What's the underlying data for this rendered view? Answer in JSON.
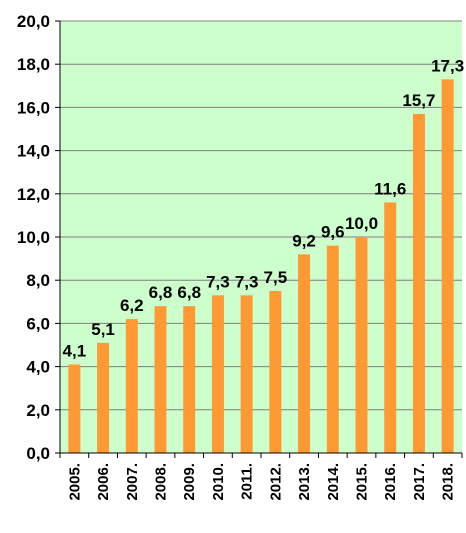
{
  "chart_data": {
    "type": "bar",
    "categories": [
      "2005.",
      "2006.",
      "2007.",
      "2008.",
      "2009.",
      "2010.",
      "2011.",
      "2012.",
      "2013.",
      "2014.",
      "2015.",
      "2016.",
      "2017.",
      "2018."
    ],
    "values": [
      4.1,
      5.1,
      6.2,
      6.8,
      6.8,
      7.3,
      7.3,
      7.5,
      9.2,
      9.6,
      10.0,
      11.6,
      15.7,
      17.3
    ],
    "data_labels": [
      "4,1",
      "5,1",
      "6,2",
      "6,8",
      "6,8",
      "7,3",
      "7,3",
      "7,5",
      "9,2",
      "9,6",
      "10,0",
      "11,6",
      "15,7",
      "17,3"
    ],
    "yticks": [
      0,
      2,
      4,
      6,
      8,
      10,
      12,
      14,
      16,
      18,
      20
    ],
    "ytick_labels": [
      "0,0",
      "2,0",
      "4,0",
      "6,0",
      "8,0",
      "10,0",
      "12,0",
      "14,0",
      "16,0",
      "18,0",
      "20,0"
    ],
    "ylim": [
      0,
      20
    ],
    "grid": true,
    "legend": "none",
    "colors": {
      "plot_background": "#ccffcc",
      "bar": "#ff9933",
      "gridline": "#7f7f7f",
      "axis": "#000000"
    }
  }
}
